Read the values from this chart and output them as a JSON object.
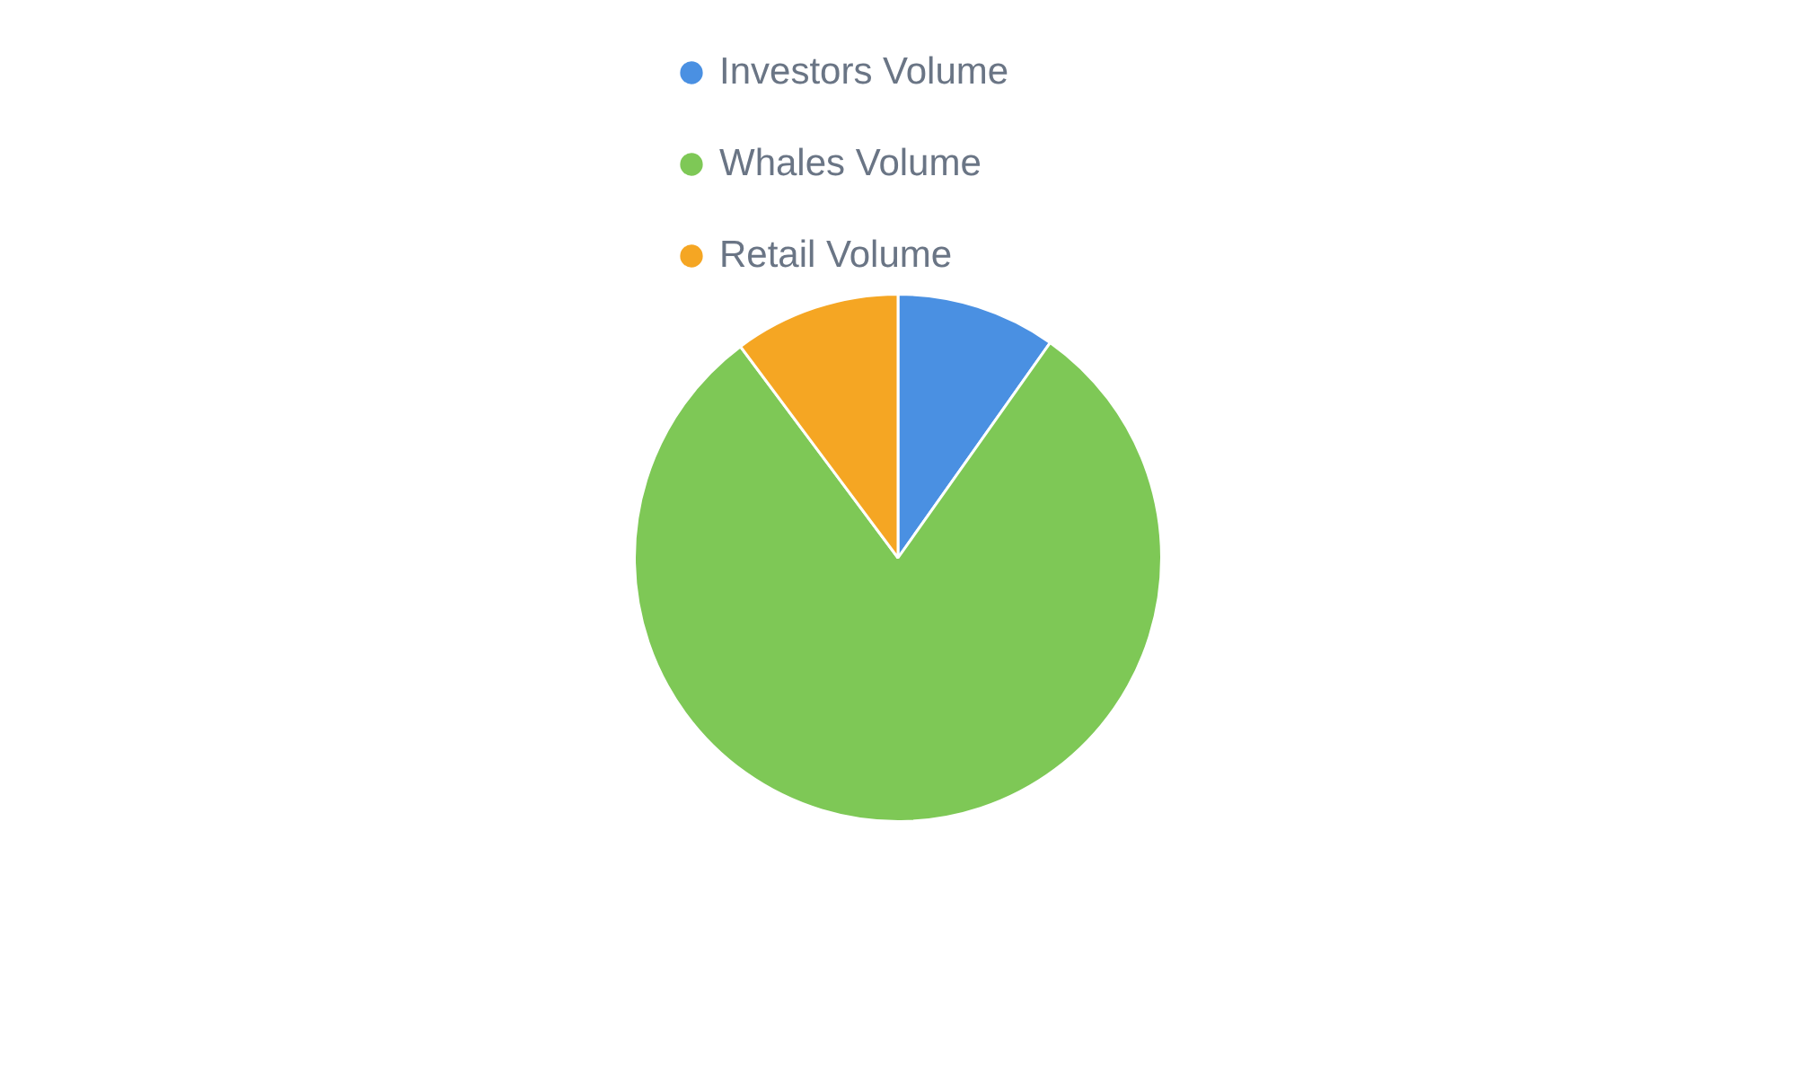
{
  "chart_data": {
    "type": "pie",
    "categories": [
      "Investors Volume",
      "Whales Volume",
      "Retail Volume"
    ],
    "values": [
      9.8,
      80,
      10.2
    ],
    "colors": [
      "#4a90e2",
      "#7ec856",
      "#f5a623"
    ],
    "legend": "top left"
  }
}
